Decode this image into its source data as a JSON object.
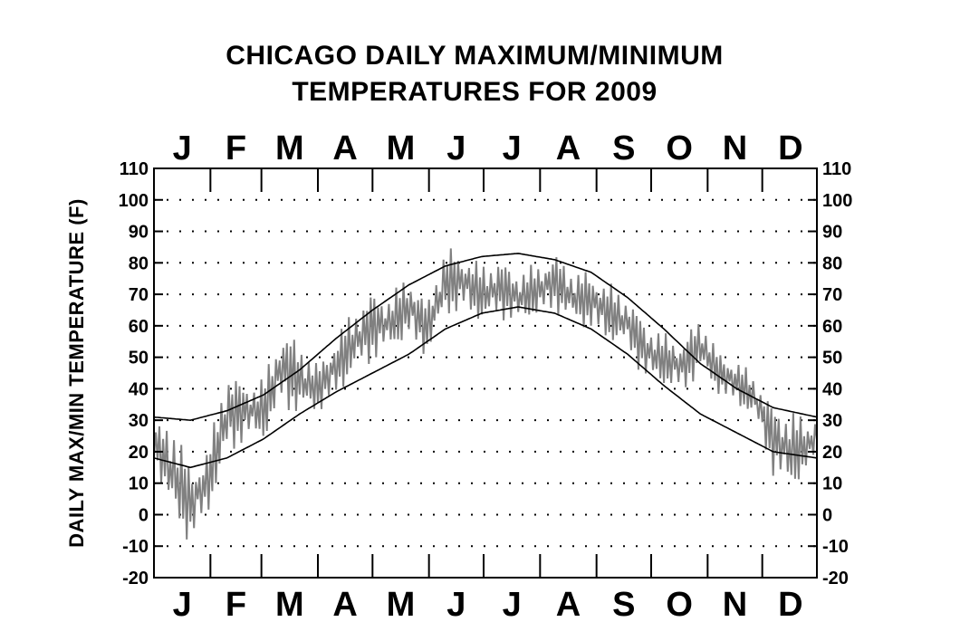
{
  "chart_data": {
    "type": "line",
    "title": [
      "CHICAGO DAILY MAXIMUM/MINIMUM",
      "TEMPERATURES FOR 2009"
    ],
    "xlabel": "",
    "ylabel": "DAILY MAX/MIN TEMPERATURE (F)",
    "ylim": [
      -20,
      110
    ],
    "y_ticks": [
      "110",
      "100",
      "90",
      "80",
      "70",
      "60",
      "50",
      "40",
      "30",
      "20",
      "10",
      "0",
      "-10",
      "-20"
    ],
    "months": [
      "J",
      "F",
      "M",
      "A",
      "M",
      "J",
      "J",
      "A",
      "S",
      "O",
      "N",
      "D"
    ],
    "xlim": [
      1,
      365
    ],
    "grid": "dotted",
    "colors": {
      "observed": "#808080",
      "normals": "#000000"
    },
    "series": [
      {
        "name": "",
        "style": "observed",
        "x": [
          1,
          11,
          21,
          31,
          41,
          51,
          61,
          71,
          81,
          91,
          101,
          111,
          121,
          131,
          141,
          151,
          161,
          171,
          181,
          191,
          201,
          211,
          221,
          231,
          241,
          251,
          261,
          271,
          281,
          291,
          301,
          311,
          321,
          331,
          341,
          351,
          361,
          365
        ],
        "high": [
          28,
          32,
          16,
          22,
          48,
          42,
          44,
          60,
          56,
          48,
          58,
          66,
          72,
          70,
          78,
          68,
          86,
          84,
          80,
          82,
          78,
          80,
          84,
          78,
          78,
          74,
          70,
          62,
          58,
          56,
          64,
          52,
          50,
          44,
          36,
          34,
          30,
          34
        ],
        "low": [
          18,
          -4,
          -10,
          0,
          16,
          24,
          22,
          34,
          30,
          32,
          36,
          44,
          48,
          52,
          54,
          50,
          62,
          64,
          60,
          62,
          60,
          62,
          64,
          60,
          58,
          54,
          52,
          42,
          40,
          38,
          44,
          38,
          34,
          30,
          12,
          6,
          14,
          18
        ]
      },
      {
        "name": "",
        "style": "normal_high",
        "x": [
          1,
          21,
          41,
          61,
          81,
          101,
          121,
          141,
          161,
          181,
          201,
          221,
          241,
          261,
          281,
          301,
          321,
          341,
          365
        ],
        "values": [
          31,
          30,
          33,
          38,
          46,
          56,
          65,
          73,
          79,
          82,
          83,
          81,
          77,
          69,
          59,
          48,
          40,
          34,
          31
        ]
      },
      {
        "name": "",
        "style": "normal_low",
        "x": [
          1,
          21,
          41,
          61,
          81,
          101,
          121,
          141,
          161,
          181,
          201,
          221,
          241,
          261,
          281,
          301,
          321,
          341,
          365
        ],
        "values": [
          18,
          15,
          18,
          24,
          32,
          39,
          45,
          51,
          59,
          64,
          66,
          64,
          59,
          51,
          41,
          32,
          26,
          20,
          18
        ]
      }
    ]
  }
}
